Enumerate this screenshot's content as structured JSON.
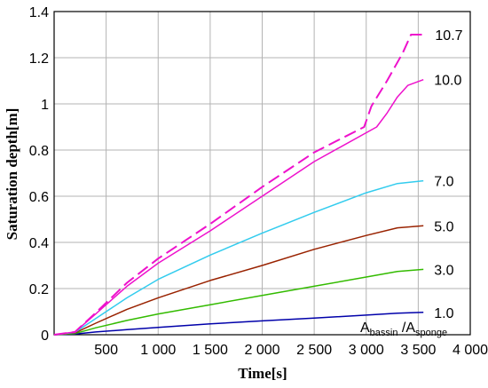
{
  "chart_data": {
    "type": "line",
    "xlabel": "Time[s]",
    "ylabel": "Saturation depth[m]",
    "xlim": [
      0,
      4000
    ],
    "ylim": [
      0,
      1.4
    ],
    "xticks": [
      500,
      1000,
      1500,
      2000,
      2500,
      3000,
      3500,
      4000
    ],
    "xtick_labels": [
      "500",
      "1 000",
      "1 500",
      "2 000",
      "2 500",
      "3 000",
      "3 500",
      "4 000"
    ],
    "yticks": [
      0,
      0.2,
      0.4,
      0.6,
      0.8,
      1,
      1.2,
      1.4
    ],
    "ytick_labels": [
      "0",
      "0.2",
      "0.4",
      "0.6",
      "0.8",
      "1",
      "1.2",
      "1.4"
    ],
    "grid": true,
    "annotation": {
      "prefix": "A",
      "num_sub": "bassin",
      "slash": " /A",
      "den_sub": "sponge"
    },
    "series": [
      {
        "name": "1.0",
        "color": "#0000aa",
        "dashed": false,
        "points": [
          [
            0,
            0
          ],
          [
            200,
            0.003
          ],
          [
            400,
            0.012
          ],
          [
            700,
            0.022
          ],
          [
            1000,
            0.032
          ],
          [
            1500,
            0.047
          ],
          [
            2000,
            0.06
          ],
          [
            2500,
            0.072
          ],
          [
            3000,
            0.085
          ],
          [
            3300,
            0.093
          ],
          [
            3550,
            0.097
          ]
        ]
      },
      {
        "name": "3.0",
        "color": "#33bb00",
        "dashed": false,
        "points": [
          [
            0,
            0
          ],
          [
            200,
            0.005
          ],
          [
            400,
            0.03
          ],
          [
            700,
            0.062
          ],
          [
            1000,
            0.09
          ],
          [
            1500,
            0.13
          ],
          [
            2000,
            0.17
          ],
          [
            2500,
            0.21
          ],
          [
            3000,
            0.25
          ],
          [
            3300,
            0.274
          ],
          [
            3550,
            0.283
          ]
        ]
      },
      {
        "name": "5.0",
        "color": "#992200",
        "dashed": false,
        "points": [
          [
            0,
            0
          ],
          [
            200,
            0.008
          ],
          [
            400,
            0.05
          ],
          [
            700,
            0.11
          ],
          [
            1000,
            0.16
          ],
          [
            1500,
            0.235
          ],
          [
            2000,
            0.3
          ],
          [
            2500,
            0.37
          ],
          [
            3000,
            0.43
          ],
          [
            3300,
            0.463
          ],
          [
            3550,
            0.472
          ]
        ]
      },
      {
        "name": "7.0",
        "color": "#33ccee",
        "dashed": false,
        "points": [
          [
            0,
            0
          ],
          [
            200,
            0.01
          ],
          [
            400,
            0.07
          ],
          [
            700,
            0.16
          ],
          [
            1000,
            0.24
          ],
          [
            1500,
            0.345
          ],
          [
            2000,
            0.44
          ],
          [
            2500,
            0.53
          ],
          [
            3000,
            0.615
          ],
          [
            3300,
            0.655
          ],
          [
            3550,
            0.667
          ]
        ]
      },
      {
        "name": "10.0",
        "color": "#ee11cc",
        "dashed": false,
        "points": [
          [
            0,
            0
          ],
          [
            200,
            0.012
          ],
          [
            400,
            0.09
          ],
          [
            700,
            0.21
          ],
          [
            1000,
            0.31
          ],
          [
            1500,
            0.45
          ],
          [
            2000,
            0.6
          ],
          [
            2500,
            0.75
          ],
          [
            3100,
            0.9
          ],
          [
            3200,
            0.96
          ],
          [
            3300,
            1.03
          ],
          [
            3400,
            1.08
          ],
          [
            3550,
            1.105
          ]
        ]
      },
      {
        "name": "10.7",
        "color": "#ee11cc",
        "dashed": true,
        "points": [
          [
            0,
            0
          ],
          [
            200,
            0.012
          ],
          [
            400,
            0.095
          ],
          [
            700,
            0.225
          ],
          [
            1000,
            0.33
          ],
          [
            1500,
            0.48
          ],
          [
            2000,
            0.64
          ],
          [
            2500,
            0.79
          ],
          [
            2980,
            0.9
          ],
          [
            3050,
            0.99
          ],
          [
            3200,
            1.1
          ],
          [
            3350,
            1.22
          ],
          [
            3430,
            1.3
          ],
          [
            3560,
            1.3
          ]
        ]
      }
    ]
  }
}
